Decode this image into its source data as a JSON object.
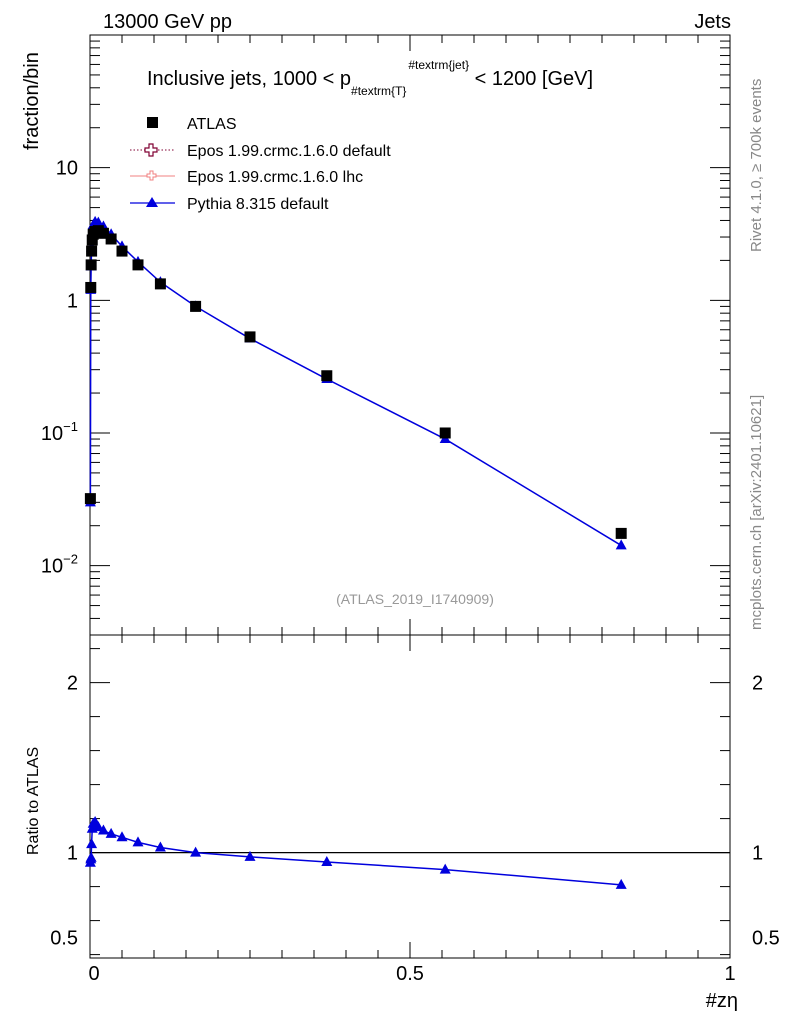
{
  "header": {
    "energy_label": "13000 GeV pp",
    "category_label": "Jets",
    "rivet_label": "Rivet 4.1.0, ≥ 700k events",
    "mcplots_label": "mcplots.cern.ch [arXiv:2401.10621]",
    "analysis_label": "(ATLAS_2019_I1740909)"
  },
  "chart_data": [
    {
      "type": "scatter",
      "title_parts": {
        "base": "Inclusive jets, 1000 < p",
        "subscript": "#textrm{T}",
        "superscript": "#textrm{jet}",
        "tail": " < 1200 [GeV]"
      },
      "xlabel": "#zη",
      "ylabel": "fraction/bin",
      "xlim": [
        0,
        1
      ],
      "ylim": [
        0.003,
        100
      ],
      "yscale": "log",
      "x_ticks": [
        "0",
        "0.5",
        "1"
      ],
      "y_ticks": [
        {
          "base": "10",
          "exp": "−2",
          "value": 0.01
        },
        {
          "base": "10",
          "exp": "−1",
          "value": 0.1
        },
        {
          "base": "1",
          "exp": "",
          "value": 1
        },
        {
          "base": "10",
          "exp": "",
          "value": 10
        }
      ],
      "legend_position": "top-left",
      "series": [
        {
          "name": "ATLAS",
          "style": "marker",
          "marker": "square",
          "color": "#000000",
          "points": [
            {
              "x": 0.0006,
              "y": 0.032
            },
            {
              "x": 0.0012,
              "y": 1.25
            },
            {
              "x": 0.0018,
              "y": 1.85
            },
            {
              "x": 0.0025,
              "y": 2.35
            },
            {
              "x": 0.0035,
              "y": 2.85
            },
            {
              "x": 0.005,
              "y": 3.15
            },
            {
              "x": 0.008,
              "y": 3.3
            },
            {
              "x": 0.013,
              "y": 3.35
            },
            {
              "x": 0.021,
              "y": 3.2
            },
            {
              "x": 0.033,
              "y": 2.9
            },
            {
              "x": 0.05,
              "y": 2.35
            },
            {
              "x": 0.075,
              "y": 1.85
            },
            {
              "x": 0.11,
              "y": 1.33
            },
            {
              "x": 0.165,
              "y": 0.9
            },
            {
              "x": 0.25,
              "y": 0.53
            },
            {
              "x": 0.37,
              "y": 0.27
            },
            {
              "x": 0.555,
              "y": 0.1
            },
            {
              "x": 0.83,
              "y": 0.0175
            }
          ]
        },
        {
          "name": "Epos 1.99.crmc.1.6.0 default",
          "style": "dotted-line",
          "marker": "open-cross",
          "color": "#800033",
          "points": []
        },
        {
          "name": "Epos 1.99.crmc.1.6.0 lhc",
          "style": "line",
          "marker": "open-cross",
          "color": "#f08080",
          "points": []
        },
        {
          "name": "Pythia 8.315 default",
          "style": "line",
          "marker": "triangle",
          "color": "#0000dd",
          "points": [
            {
              "x": 0.0006,
              "y": 0.03
            },
            {
              "x": 0.0012,
              "y": 1.2
            },
            {
              "x": 0.0018,
              "y": 1.8
            },
            {
              "x": 0.0025,
              "y": 2.5
            },
            {
              "x": 0.0035,
              "y": 3.25
            },
            {
              "x": 0.005,
              "y": 3.7
            },
            {
              "x": 0.008,
              "y": 3.9
            },
            {
              "x": 0.013,
              "y": 3.85
            },
            {
              "x": 0.021,
              "y": 3.6
            },
            {
              "x": 0.033,
              "y": 3.15
            },
            {
              "x": 0.05,
              "y": 2.55
            },
            {
              "x": 0.075,
              "y": 1.95
            },
            {
              "x": 0.11,
              "y": 1.37
            },
            {
              "x": 0.165,
              "y": 0.9
            },
            {
              "x": 0.25,
              "y": 0.515
            },
            {
              "x": 0.37,
              "y": 0.255
            },
            {
              "x": 0.555,
              "y": 0.09
            },
            {
              "x": 0.83,
              "y": 0.0142
            }
          ]
        }
      ]
    },
    {
      "type": "line",
      "ylabel": "Ratio to ATLAS",
      "xlabel": "#zη",
      "xlim": [
        0,
        1
      ],
      "ylim": [
        0.38,
        2.28
      ],
      "reference_line": 1,
      "y_ticks": [
        "0.5",
        "1",
        "2"
      ],
      "x_ticks": [
        "0",
        "0.5",
        "1"
      ],
      "series": [
        {
          "name": "Pythia 8.315 default",
          "color": "#0000dd",
          "points": [
            {
              "x": 0.0006,
              "y": 0.94
            },
            {
              "x": 0.0012,
              "y": 0.96
            },
            {
              "x": 0.0018,
              "y": 0.97
            },
            {
              "x": 0.0025,
              "y": 1.05
            },
            {
              "x": 0.0035,
              "y": 1.14
            },
            {
              "x": 0.005,
              "y": 1.17
            },
            {
              "x": 0.008,
              "y": 1.18
            },
            {
              "x": 0.013,
              "y": 1.15
            },
            {
              "x": 0.021,
              "y": 1.13
            },
            {
              "x": 0.033,
              "y": 1.11
            },
            {
              "x": 0.05,
              "y": 1.09
            },
            {
              "x": 0.075,
              "y": 1.06
            },
            {
              "x": 0.11,
              "y": 1.03
            },
            {
              "x": 0.165,
              "y": 1.0
            },
            {
              "x": 0.25,
              "y": 0.975
            },
            {
              "x": 0.37,
              "y": 0.945
            },
            {
              "x": 0.555,
              "y": 0.9
            },
            {
              "x": 0.83,
              "y": 0.81
            }
          ]
        }
      ]
    }
  ]
}
